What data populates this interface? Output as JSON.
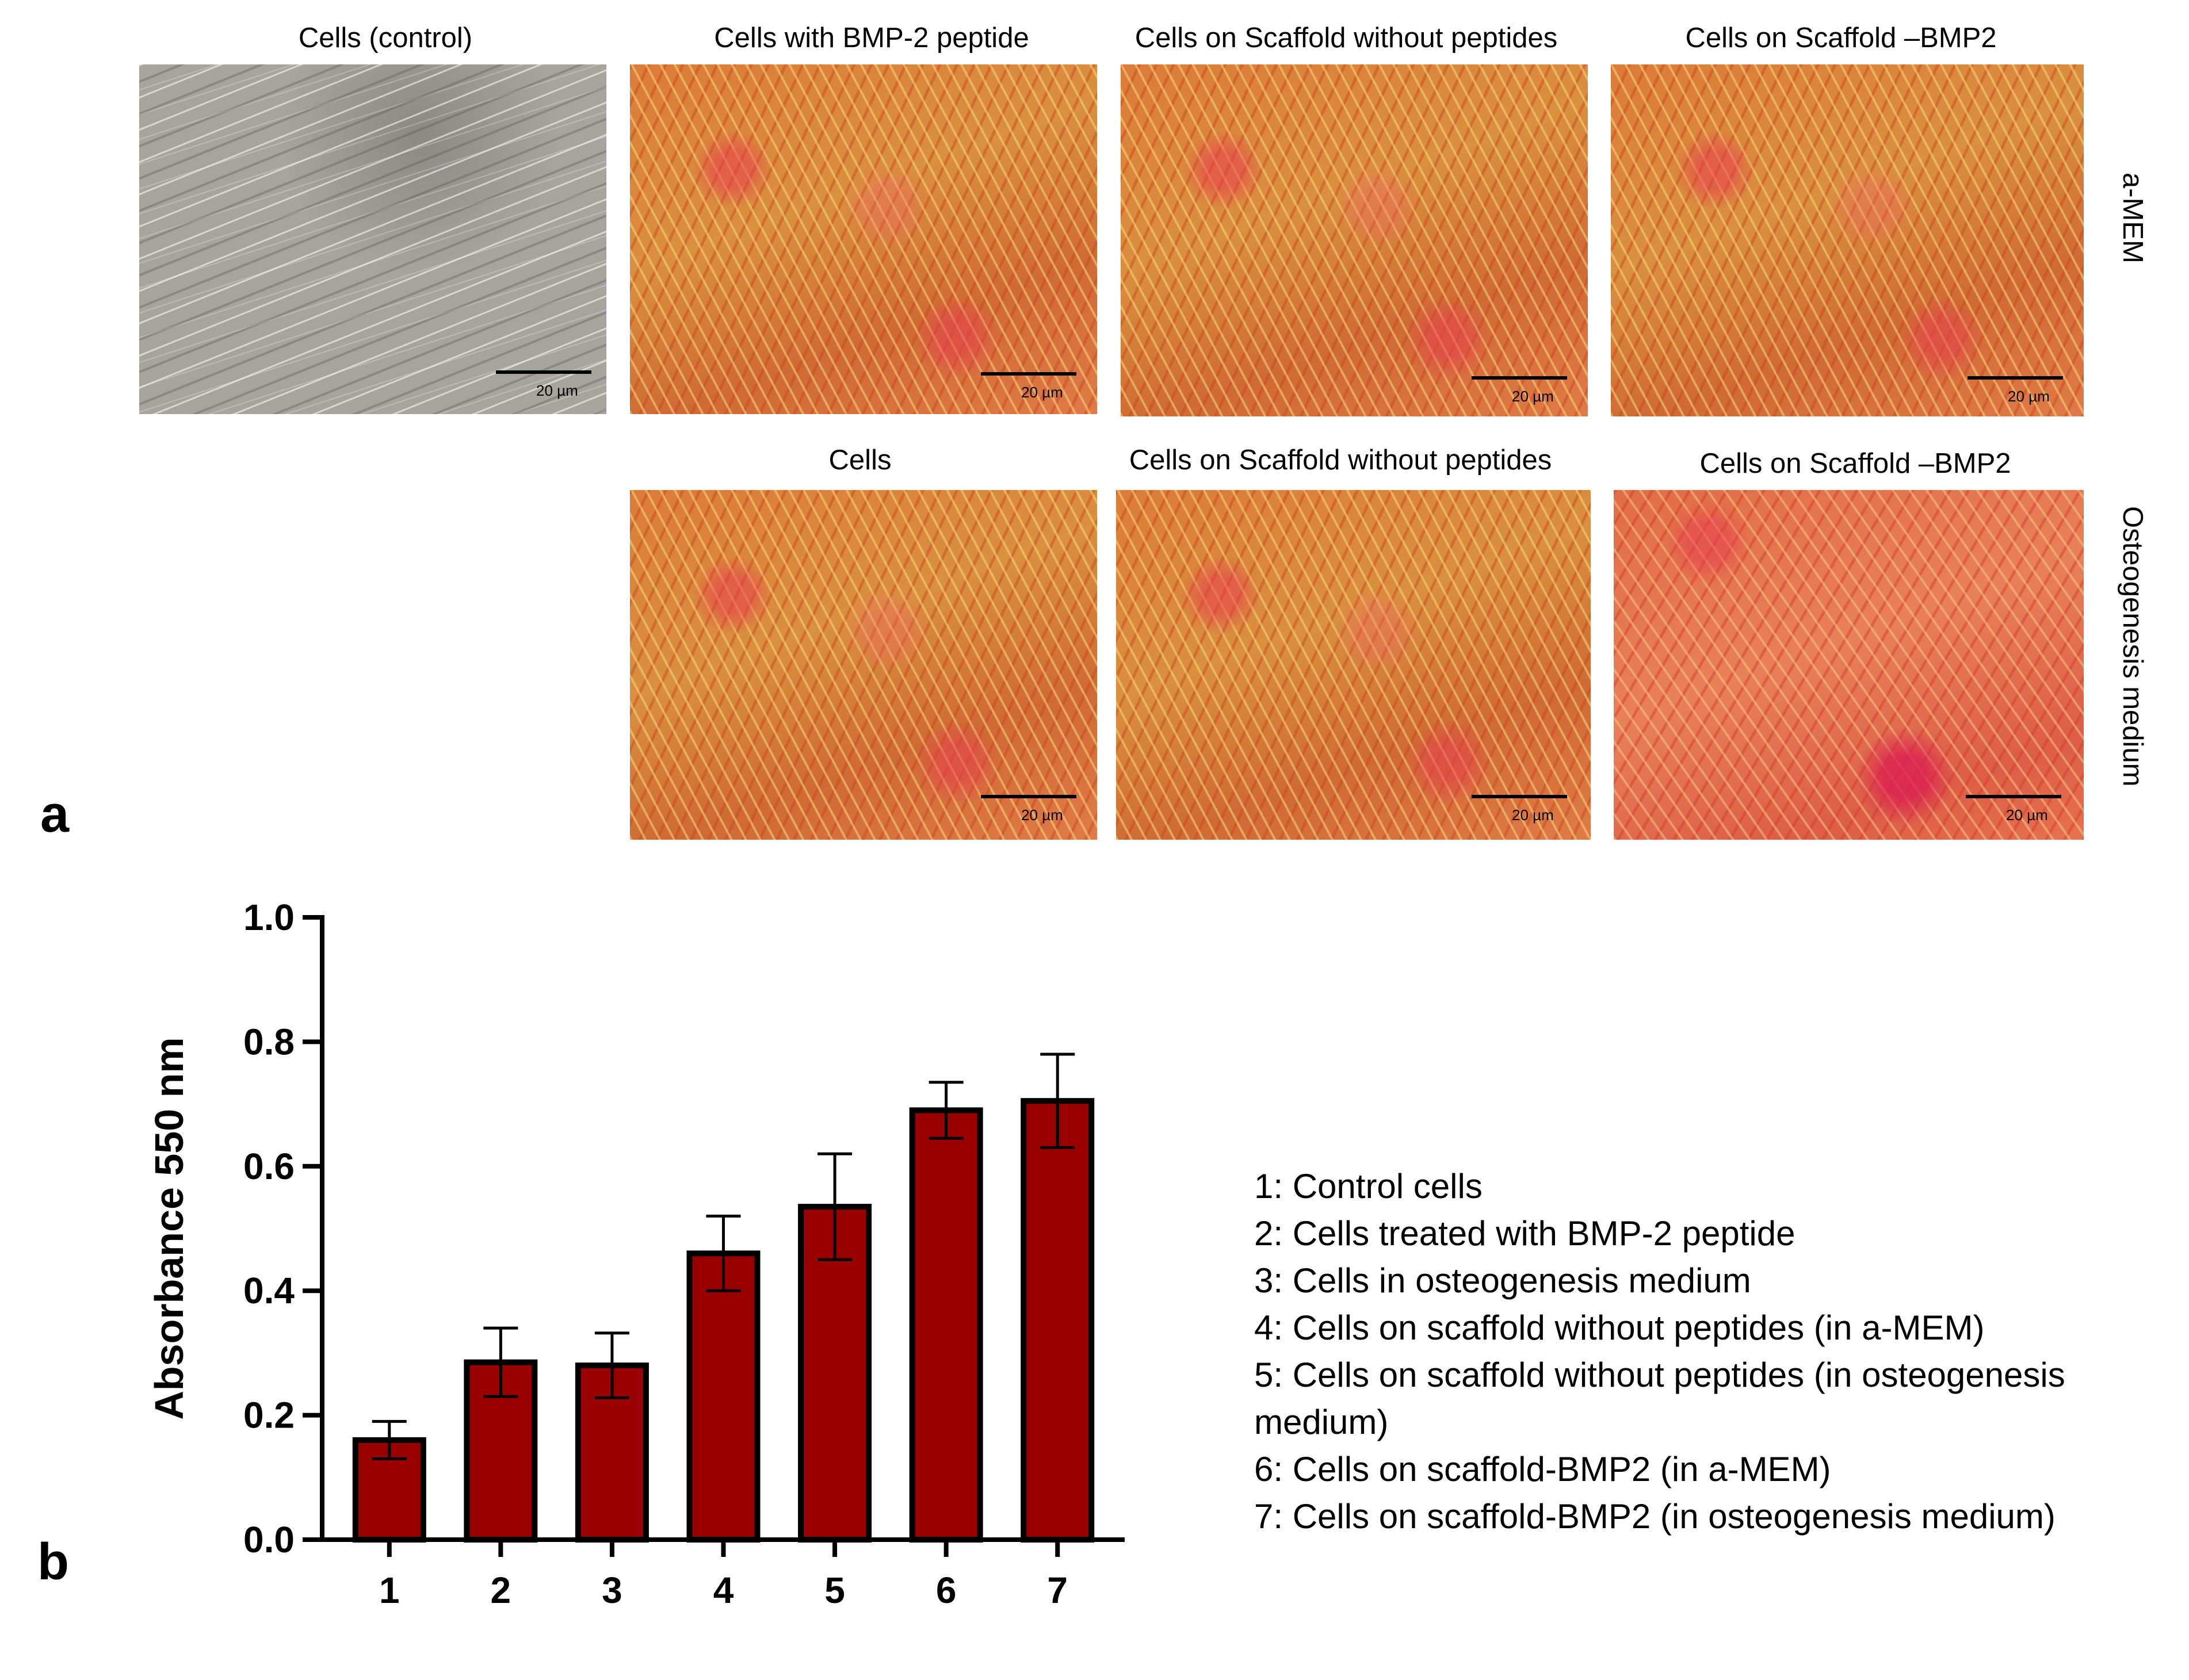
{
  "figure": {
    "panel_a_label": "a",
    "panel_b_label": "b",
    "row_labels": [
      "a-MEM",
      "Osteogenesis medium"
    ],
    "scale_bar_text": "20 µm",
    "panels": [
      {
        "title": "Cells (control)",
        "stain": "none"
      },
      {
        "title": "Cells with BMP-2 peptide",
        "stain": "red"
      },
      {
        "title": "Cells on Scaffold without peptides",
        "stain": "red"
      },
      {
        "title": "Cells on Scaffold –BMP2",
        "stain": "red"
      },
      {
        "title": "Cells",
        "stain": "red"
      },
      {
        "title": "Cells on Scaffold without peptides",
        "stain": "red"
      },
      {
        "title": "Cells on Scaffold –BMP2",
        "stain": "red"
      }
    ]
  },
  "legend": [
    "1: Control cells",
    "2: Cells treated with BMP-2 peptide",
    "3: Cells in osteogenesis medium",
    "4: Cells on scaffold without peptides (in a-MEM)",
    "5: Cells on scaffold without peptides (in osteogenesis",
    "medium)",
    "6: Cells on scaffold-BMP2 (in a-MEM)",
    "7: Cells on scaffold-BMP2 (in osteogenesis medium)"
  ],
  "chart_data": {
    "type": "bar",
    "categories": [
      "1",
      "2",
      "3",
      "4",
      "5",
      "6",
      "7"
    ],
    "values": [
      0.16,
      0.285,
      0.28,
      0.46,
      0.535,
      0.69,
      0.705
    ],
    "errors": [
      0.03,
      0.055,
      0.052,
      0.06,
      0.085,
      0.045,
      0.075
    ],
    "ylabel": "Absorbance 550 nm",
    "ylim": [
      0,
      1.0
    ],
    "yticks": [
      "0.0",
      "0.2",
      "0.4",
      "0.6",
      "0.8",
      "1.0"
    ],
    "bar_color": "#990000",
    "grid": false
  }
}
